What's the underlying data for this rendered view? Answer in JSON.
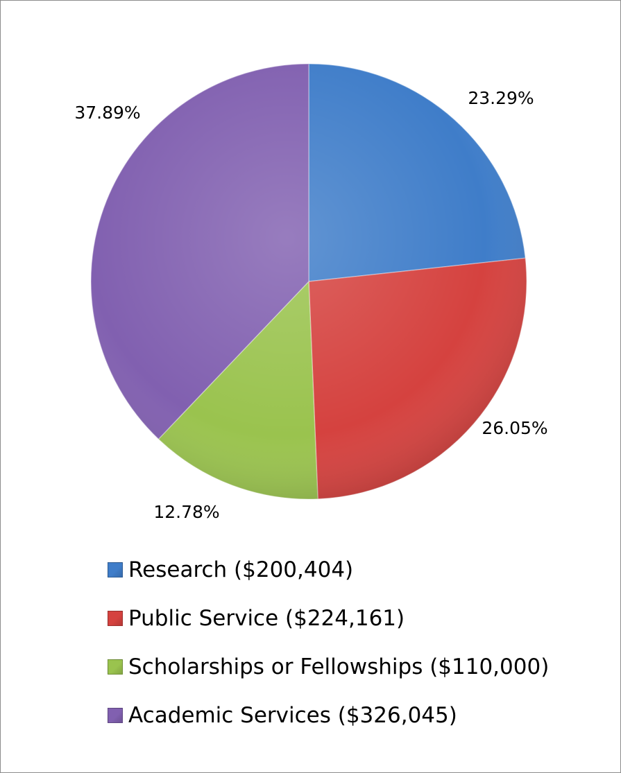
{
  "chart_data": {
    "type": "pie",
    "title": "",
    "slices": [
      {
        "name": "Research ($200,404)",
        "value": 23.29,
        "label": "23.29%",
        "color": "#3f7dc9"
      },
      {
        "name": "Public Service ($224,161)",
        "value": 26.05,
        "label": "26.05%",
        "color": "#d5423f"
      },
      {
        "name": "Scholarships or Fellowships ($110,000)",
        "value": 12.78,
        "label": "12.78%",
        "color": "#9ac34e"
      },
      {
        "name": "Academic Services ($326,045)",
        "value": 37.89,
        "label": "37.89%",
        "color": "#8160b0"
      }
    ],
    "start_angle": "12 o'clock",
    "direction": "clockwise",
    "legend_position": "bottom",
    "data_labels": "outside"
  }
}
